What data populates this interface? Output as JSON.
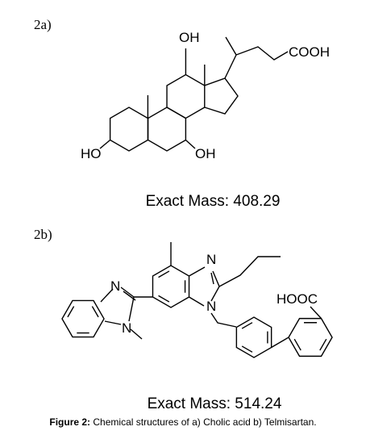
{
  "panels": [
    {
      "label": "2a)",
      "atoms": [
        "OH",
        "COOH",
        "HO",
        "OH"
      ],
      "mass": "Exact Mass: 408.29"
    },
    {
      "label": "2b)",
      "atoms": [
        "N",
        "N",
        "N",
        "N",
        "HOOC"
      ],
      "mass": "Exact Mass: 514.24"
    }
  ],
  "caption": {
    "label": "Figure 2:",
    "text": "Chemical structures of a) Cholic acid b) Telmisartan."
  }
}
